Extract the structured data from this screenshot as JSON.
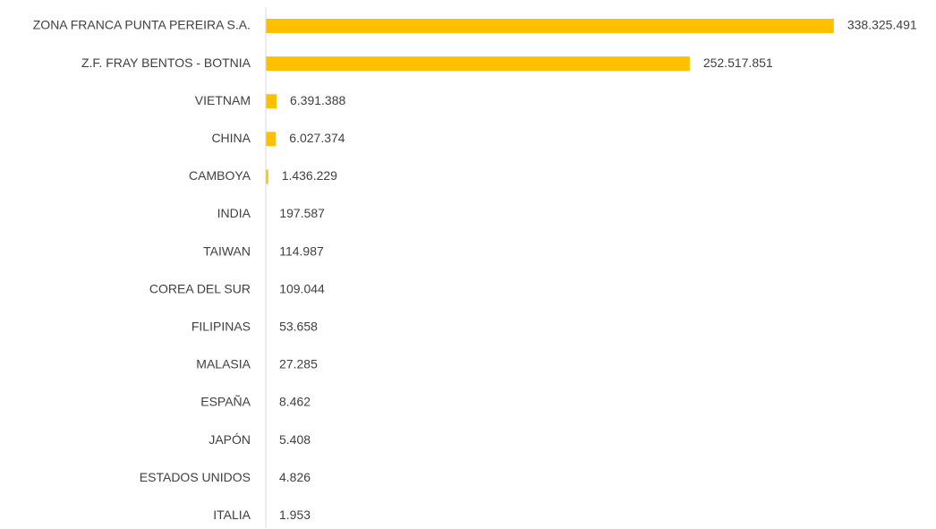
{
  "chart_data": {
    "type": "hbar",
    "categories": [
      "ZONA FRANCA PUNTA PEREIRA S.A.",
      "Z.F. FRAY BENTOS - BOTNIA",
      "VIETNAM",
      "CHINA",
      "CAMBOYA",
      "INDIA",
      "TAIWAN",
      "COREA DEL SUR",
      "FILIPINAS",
      "MALASIA",
      "ESPAÑA",
      "JAPÓN",
      "ESTADOS UNIDOS",
      "ITALIA"
    ],
    "values": [
      338325491,
      252517851,
      6391388,
      6027374,
      1436229,
      197587,
      114987,
      109044,
      53658,
      27285,
      8462,
      5408,
      4826,
      1953
    ],
    "value_labels": [
      "338.325.491",
      "252.517.851",
      "6.391.388",
      "6.027.374",
      "1.436.229",
      "197.587",
      "114.987",
      "109.044",
      "53.658",
      "27.285",
      "8.462",
      "5.408",
      "4.826",
      "1.953"
    ],
    "color": "#ffc000",
    "xlim": [
      0,
      340000000
    ]
  }
}
